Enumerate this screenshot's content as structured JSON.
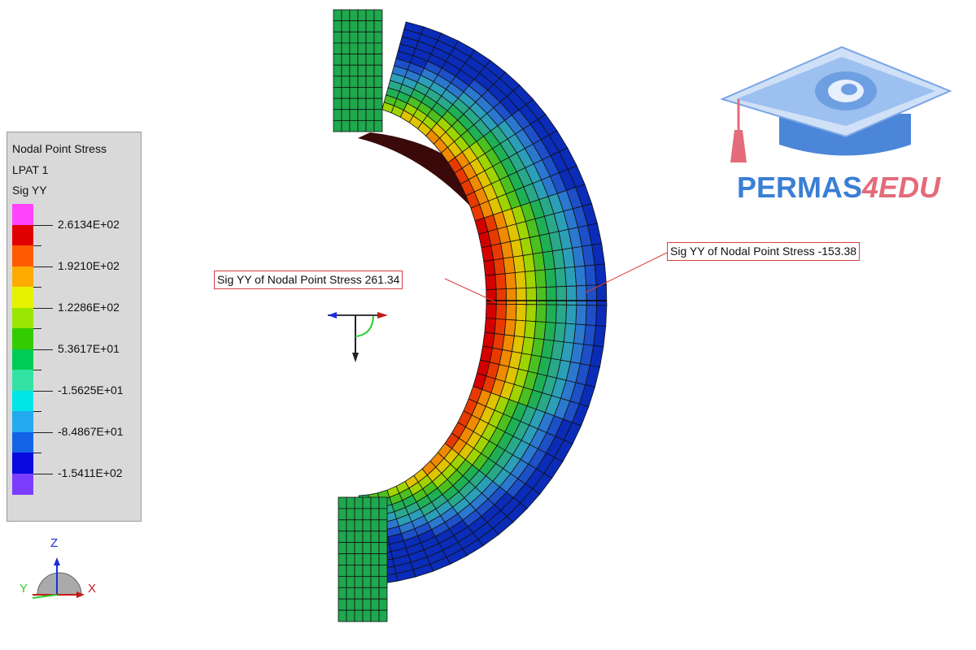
{
  "legend": {
    "title": "Nodal Point Stress",
    "load_pattern": "LPAT 1",
    "component": "Sig YY",
    "swatch_colors": [
      "#ff44ff",
      "#e00000",
      "#ff5a00",
      "#ffaa00",
      "#e6f200",
      "#99e600",
      "#33cc00",
      "#00cc55",
      "#33e3a5",
      "#00e6e6",
      "#22aaee",
      "#1463e6",
      "#0a0adf",
      "#7d3dff"
    ],
    "labels": [
      "2.6134E+02",
      "1.9210E+02",
      "1.2286E+02",
      "5.3617E+01",
      "-1.5625E+01",
      "-8.4867E+01",
      "-1.5411E+02"
    ]
  },
  "callouts": {
    "left": "Sig YY of Nodal Point Stress 261.34",
    "right": "Sig YY of Nodal Point Stress -153.38"
  },
  "orientation": {
    "z": "Z",
    "y": "Y",
    "x": "X"
  },
  "brand": {
    "part1": "PERMAS",
    "part2": "4EDU"
  },
  "colors": {
    "callout_border": "#d84040",
    "brand_blue": "#3a7fd5",
    "brand_pink": "#e36b7a"
  }
}
